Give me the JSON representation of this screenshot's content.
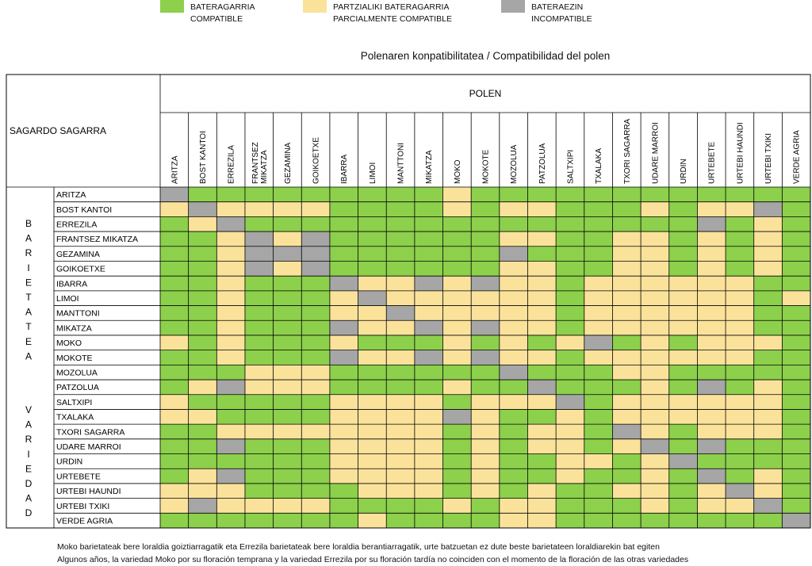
{
  "legend": [
    {
      "line1": "BATERAGARRIA",
      "line2": "COMPATIBLE",
      "color": "#8cd04c"
    },
    {
      "line1": "PARTZIALIKI BATERAGARRIA",
      "line2": "PARCIALMENTE COMPATIBLE",
      "color": "#fbe29b"
    },
    {
      "line1": "BATERAEZIN",
      "line2": "INCOMPATIBLE",
      "color": "#a6a6a6"
    }
  ],
  "page_title": "Polenaren konpatibilitatea / Compatibilidad del polen",
  "footnotes": [
    "Moko barietateak bere loraldia goiztiarragatik eta Errezila barietateak bere  loraldia berantiarragatik, urte batzuetan ez dute beste barietateen loraldiarekin bat egiten",
    "Algunos años, la variedad Moko por su floración temprana y la variedad Errezila por su floración tardía no coinciden con el momento de la floración de las otras variedades"
  ],
  "chart_data": {
    "type": "heatmap",
    "title": "Polenaren konpatibilitatea / Compatibilidad del polen",
    "corner_label": "SAGARDO SAGARRA",
    "column_group_label": "POLEN",
    "row_group_label_eu": "BARIETATEA",
    "row_group_label_es": "VARIEDAD",
    "columns": [
      "ARITZA",
      "BOST KANTOI",
      "ERREZILA",
      "FRANTSEZ MIKATZA",
      "GEZAMINA",
      "GOIKOETXE",
      "IBARRA",
      "LIMOI",
      "MANTTONI",
      "MIKATZA",
      "MOKO",
      "MOKOTE",
      "MOZOLUA",
      "PATZOLUA",
      "SALTXIPI",
      "TXALAKA",
      "TXORI SAGARRA",
      "UDARE MARROI",
      "URDIN",
      "URTEBETE",
      "URTEBI HAUNDI",
      "URTEBI TXIKI",
      "VERDE AGRIA"
    ],
    "rows": [
      "ARITZA",
      "BOST KANTOI",
      "ERREZILA",
      "FRANTSEZ MIKATZA",
      "GEZAMINA",
      "GOIKOETXE",
      "IBARRA",
      "LIMOI",
      "MANTTONI",
      "MIKATZA",
      "MOKO",
      "MOKOTE",
      "MOZOLUA",
      "PATZOLUA",
      "SALTXIPI",
      "TXALAKA",
      "TXORI SAGARRA",
      "UDARE MARROI",
      "URDIN",
      "URTEBETE",
      "URTEBI HAUNDI",
      "URTEBI TXIKI",
      "VERDE AGRIA"
    ],
    "categories": {
      "C": {
        "eu": "BATERAGARRIA",
        "es": "COMPATIBLE",
        "color": "#8cd04c"
      },
      "P": {
        "eu": "PARTZIALIKI BATERAGARRIA",
        "es": "PARCIALMENTE COMPATIBLE",
        "color": "#fbe29b"
      },
      "I": {
        "eu": "BATERAEZIN",
        "es": "INCOMPATIBLE",
        "color": "#a6a6a6"
      }
    },
    "matrix": [
      "ICCCCCCCCCPCCCCCCCCCCCC",
      "PIPPPPCCCCPCPPCCCPCPPIC",
      "CPICCCCCCCCCCCCCCCCICPC",
      "CCPIPICCCCCCPPCCPPCPCPC",
      "CCPIIICCCCCCICCCPPCPCPC",
      "CCPIPICCCCCCPPCCPPCPCPC",
      "CCPCCCIPPIPIPPCPPPPPPCC",
      "CCPCCCPIPPPPPPCPPPPPPCP",
      "CCPCCCPPIPPPPPCPPPPPPCC",
      "CCPCCCIPPIPIPPCPPPPPPCC",
      "PCPCCCPCCCPCPCPICPCPPPC",
      "CCPCCCIPPIPIPPCPPPPPPCC",
      "CCCPPPCCCCCCICCCPPCCCCC",
      "CPIPPPCCCCPCCICCCPCICPC",
      "PCCCCCPPPPCPPPICPPPPPPC",
      "PPCCCCPPPPIPCCPCPPPPPPC",
      "CCPPPPPPPPCPCPPCIPCPPPC",
      "CCICCCPPPPCPCPPCPICICCC",
      "CCCCCCPPPPCPCCPPCPICCCC",
      "CPICCCPPPPCPCCPCCPCICPC",
      "PPPCCCCPPPCPCPCCPPCPIPC",
      "PIPPPPCCCCPCPPCCCPCPPIC",
      "CCCCCCCPCCCCPPCCCCCCCCI"
    ]
  }
}
